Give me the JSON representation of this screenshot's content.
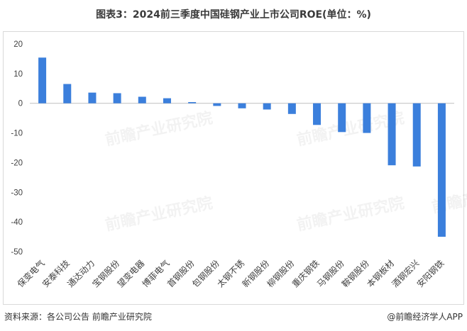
{
  "title": "图表3：2024前三季度中国硅钢产业上市公司ROE(单位：%)",
  "source": "资料来源：各公司公告 前瞻产业研究院",
  "brand": "@前瞻经济学人APP",
  "watermark_text": "前瞻产业研究院",
  "colors": {
    "bar": "#3b7fdc",
    "axis": "#bfbfbf",
    "text": "#404040"
  },
  "chart_data": {
    "type": "bar",
    "categories": [
      "保变电气",
      "安泰科技",
      "通达动力",
      "宝钢股份",
      "望变电器",
      "博菲电气",
      "首钢股份",
      "包钢股份",
      "太钢不锈",
      "新钢股份",
      "柳钢股份",
      "重庆钢铁",
      "马钢股份",
      "鞍钢股份",
      "本钢板材",
      "酒钢宏兴",
      "安阳钢铁"
    ],
    "values": [
      15.4,
      6.5,
      3.6,
      3.4,
      2.2,
      1.7,
      0.4,
      -0.9,
      -1.7,
      -2.1,
      -3.6,
      -7.3,
      -9.7,
      -10.0,
      -20.9,
      -21.3,
      -45.0
    ],
    "yticks": [
      20,
      10,
      0,
      -10,
      -20,
      -30,
      -40,
      -50
    ],
    "ylim": [
      -50,
      20
    ],
    "grid": false
  }
}
